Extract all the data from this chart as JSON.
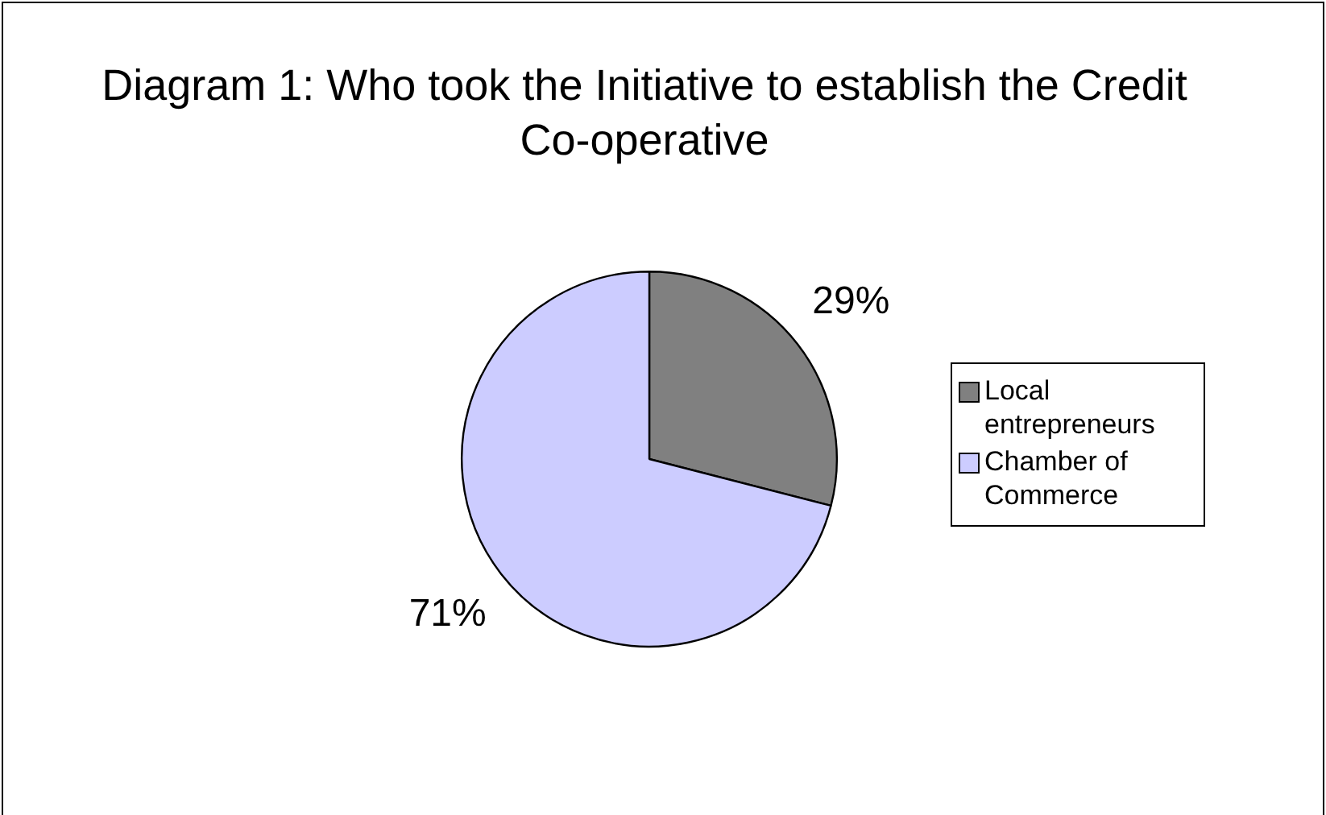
{
  "chart_data": {
    "type": "pie",
    "title": "Diagram 1: Who took the Initiative to establish the Credit Co-operative",
    "categories": [
      "Local entrepreneurs",
      "Chamber of Commerce"
    ],
    "values": [
      29,
      71
    ],
    "colors": [
      "#808080",
      "#ccccff"
    ],
    "value_labels": [
      "29%",
      "71%"
    ],
    "legend": "right"
  }
}
